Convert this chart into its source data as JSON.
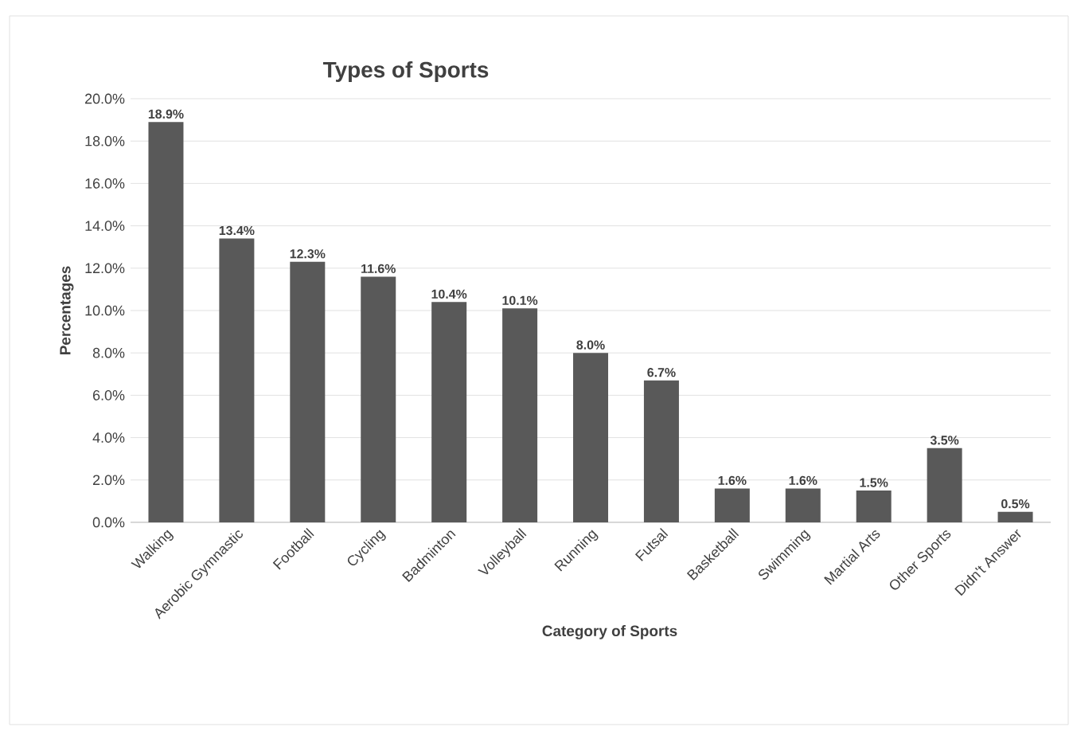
{
  "chart_data": {
    "type": "bar",
    "title": "Types of Sports",
    "xlabel": "Category of Sports",
    "ylabel": "Percentages",
    "categories": [
      "Walking",
      "Aerobic Gymnastic",
      "Football",
      "Cycling",
      "Badminton",
      "Volleyball",
      "Running",
      "Futsal",
      "Basketball",
      "Swimming",
      "Martial Arts",
      "Other Sports",
      "Didn't Answer"
    ],
    "values": [
      18.9,
      13.4,
      12.3,
      11.6,
      10.4,
      10.1,
      8.0,
      6.7,
      1.6,
      1.6,
      1.5,
      3.5,
      0.5
    ],
    "value_labels": [
      "18.9%",
      "13.4%",
      "12.3%",
      "11.6%",
      "10.4%",
      "10.1%",
      "8.0%",
      "6.7%",
      "1.6%",
      "1.6%",
      "1.5%",
      "3.5%",
      "0.5%"
    ],
    "color": "#595959",
    "ylim": [
      0,
      20
    ],
    "yticks": [
      {
        "value": 0,
        "label": "0.0%"
      },
      {
        "value": 2,
        "label": "2.0%"
      },
      {
        "value": 4,
        "label": "4.0%"
      },
      {
        "value": 6,
        "label": "6.0%"
      },
      {
        "value": 8,
        "label": "8.0%"
      },
      {
        "value": 10,
        "label": "10.0%"
      },
      {
        "value": 12,
        "label": "12.0%"
      },
      {
        "value": 14,
        "label": "14.0%"
      },
      {
        "value": 16,
        "label": "16.0%"
      },
      {
        "value": 18,
        "label": "18.0%"
      },
      {
        "value": 20,
        "label": "20.0%"
      }
    ],
    "grid": "y"
  }
}
